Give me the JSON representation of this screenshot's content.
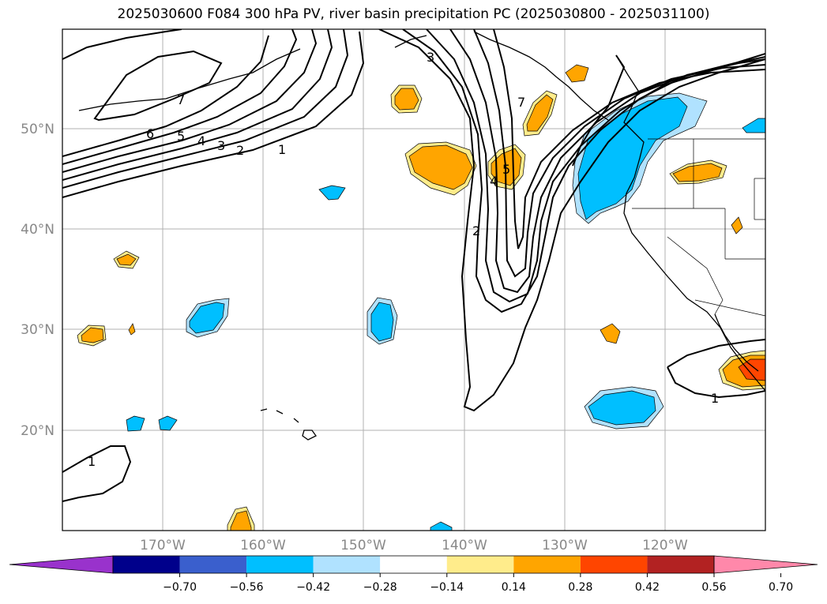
{
  "title": "2025030600 F084 300 hPa PV, river basin precipitation PC (2025030800 - 2025031100)",
  "lat_labels": [
    "50°N",
    "40°N",
    "30°N",
    "20°N"
  ],
  "lon_labels": [
    "170°W",
    "160°W",
    "150°W",
    "140°W",
    "130°W",
    "120°W"
  ],
  "contour_labels": [
    "1",
    "2",
    "3",
    "4",
    "5",
    "6",
    "7",
    "3",
    "2",
    "1",
    "1",
    "7",
    "5",
    "4"
  ],
  "colorbar": {
    "ticks": [
      "−0.70",
      "−0.56",
      "−0.42",
      "−0.28",
      "−0.14",
      "0.14",
      "0.28",
      "0.42",
      "0.56",
      "0.70"
    ],
    "colors": [
      "#9932cc",
      "#00008b",
      "#3a5fcd",
      "#00bfff",
      "#b0e2ff",
      "#ffffff",
      "#ffec8b",
      "#ffa500",
      "#ff4500",
      "#b22222",
      "#ff88aa"
    ]
  },
  "colors": {
    "neg_strong": "#00bfff",
    "neg_weak": "#b0e2ff",
    "pos_weak": "#ffec8b",
    "pos_mid": "#ffa500",
    "pos_strong": "#ff4500"
  }
}
